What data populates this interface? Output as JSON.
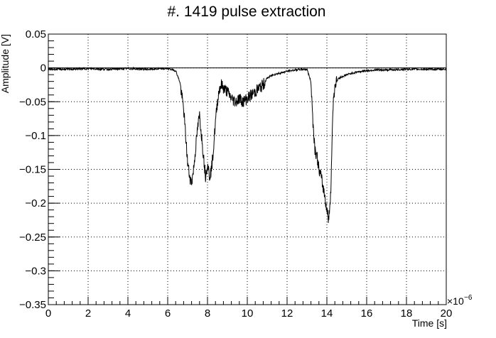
{
  "chart_data": {
    "type": "line",
    "title": "#. 1419 pulse extraction",
    "xlabel": "Time [s]",
    "ylabel": "Amplitude [V]",
    "x_multiplier_label": "×10",
    "x_multiplier_exp": "−6",
    "xlim": [
      0,
      20
    ],
    "ylim": [
      -0.35,
      0.05
    ],
    "x_ticks": [
      0,
      2,
      4,
      6,
      8,
      10,
      12,
      14,
      16,
      18,
      20
    ],
    "x_tick_labels": [
      "0",
      "2",
      "4",
      "6",
      "8",
      "10",
      "12",
      "14",
      "16",
      "18",
      "20"
    ],
    "y_ticks": [
      0.05,
      0,
      -0.05,
      -0.1,
      -0.15,
      -0.2,
      -0.25,
      -0.3,
      -0.35
    ],
    "y_tick_labels": [
      "0.05",
      "0",
      "−0.05",
      "−0.1",
      "−0.15",
      "−0.2",
      "−0.25",
      "−0.3",
      "−0.35"
    ],
    "grid": true,
    "reference_line_y": 0,
    "series": [
      {
        "color": "#000000",
        "x": [
          0,
          1,
          2,
          3,
          4,
          5,
          6,
          6.4,
          6.6,
          6.8,
          6.9,
          7.0,
          7.1,
          7.2,
          7.3,
          7.4,
          7.5,
          7.6,
          7.7,
          7.8,
          7.9,
          8.0,
          8.1,
          8.2,
          8.3,
          8.4,
          8.5,
          8.6,
          8.7,
          8.8,
          9.0,
          9.2,
          9.4,
          9.6,
          9.8,
          10.0,
          10.2,
          10.4,
          10.6,
          10.8,
          11.0,
          11.3,
          11.6,
          12.0,
          12.4,
          12.8,
          13.0,
          13.2,
          13.3,
          13.4,
          13.5,
          13.6,
          13.7,
          13.8,
          13.9,
          14.0,
          14.1,
          14.2,
          14.3,
          14.4,
          14.6,
          15.0,
          15.5,
          16.0,
          16.5,
          17.0,
          18.0,
          19.0,
          20.0
        ],
        "y": [
          -0.002,
          -0.002,
          -0.001,
          -0.002,
          -0.001,
          -0.002,
          -0.001,
          -0.004,
          -0.02,
          -0.06,
          -0.1,
          -0.14,
          -0.16,
          -0.17,
          -0.15,
          -0.12,
          -0.09,
          -0.07,
          -0.1,
          -0.13,
          -0.16,
          -0.14,
          -0.16,
          -0.15,
          -0.12,
          -0.08,
          -0.05,
          -0.03,
          -0.025,
          -0.03,
          -0.035,
          -0.045,
          -0.05,
          -0.045,
          -0.05,
          -0.045,
          -0.04,
          -0.035,
          -0.03,
          -0.025,
          -0.015,
          -0.01,
          -0.008,
          -0.005,
          -0.003,
          -0.002,
          -0.002,
          -0.02,
          -0.08,
          -0.12,
          -0.13,
          -0.15,
          -0.16,
          -0.175,
          -0.19,
          -0.21,
          -0.225,
          -0.18,
          -0.06,
          -0.025,
          -0.015,
          -0.01,
          -0.006,
          -0.004,
          -0.003,
          -0.003,
          -0.002,
          -0.002,
          -0.002
        ]
      }
    ]
  }
}
